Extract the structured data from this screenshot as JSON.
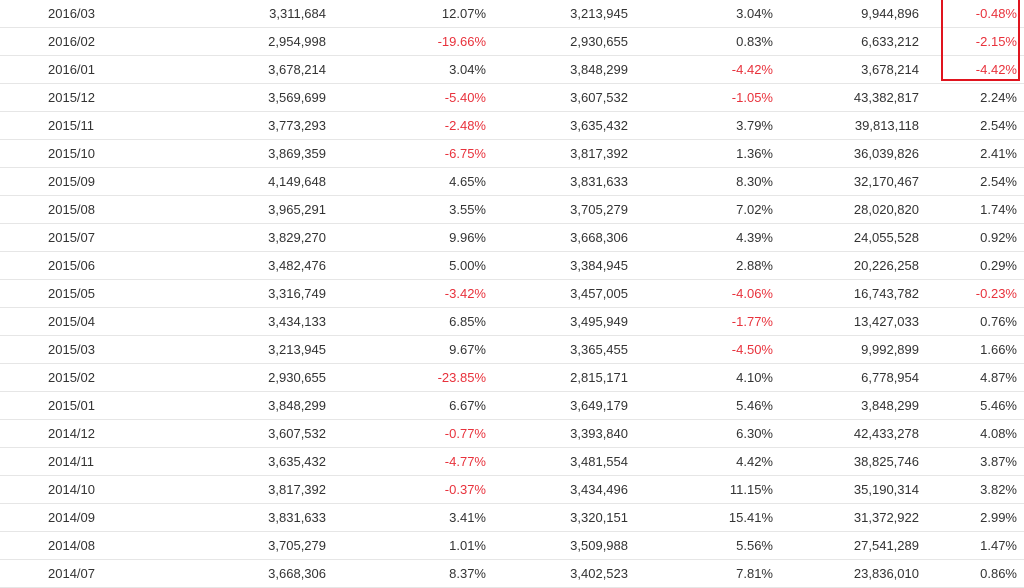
{
  "table": {
    "rows": [
      [
        "2016/03",
        "3,311,684",
        "12.07%",
        "3,213,945",
        "3.04%",
        "9,944,896",
        "-0.48%"
      ],
      [
        "2016/02",
        "2,954,998",
        "-19.66%",
        "2,930,655",
        "0.83%",
        "6,633,212",
        "-2.15%"
      ],
      [
        "2016/01",
        "3,678,214",
        "3.04%",
        "3,848,299",
        "-4.42%",
        "3,678,214",
        "-4.42%"
      ],
      [
        "2015/12",
        "3,569,699",
        "-5.40%",
        "3,607,532",
        "-1.05%",
        "43,382,817",
        "2.24%"
      ],
      [
        "2015/11",
        "3,773,293",
        "-2.48%",
        "3,635,432",
        "3.79%",
        "39,813,118",
        "2.54%"
      ],
      [
        "2015/10",
        "3,869,359",
        "-6.75%",
        "3,817,392",
        "1.36%",
        "36,039,826",
        "2.41%"
      ],
      [
        "2015/09",
        "4,149,648",
        "4.65%",
        "3,831,633",
        "8.30%",
        "32,170,467",
        "2.54%"
      ],
      [
        "2015/08",
        "3,965,291",
        "3.55%",
        "3,705,279",
        "7.02%",
        "28,020,820",
        "1.74%"
      ],
      [
        "2015/07",
        "3,829,270",
        "9.96%",
        "3,668,306",
        "4.39%",
        "24,055,528",
        "0.92%"
      ],
      [
        "2015/06",
        "3,482,476",
        "5.00%",
        "3,384,945",
        "2.88%",
        "20,226,258",
        "0.29%"
      ],
      [
        "2015/05",
        "3,316,749",
        "-3.42%",
        "3,457,005",
        "-4.06%",
        "16,743,782",
        "-0.23%"
      ],
      [
        "2015/04",
        "3,434,133",
        "6.85%",
        "3,495,949",
        "-1.77%",
        "13,427,033",
        "0.76%"
      ],
      [
        "2015/03",
        "3,213,945",
        "9.67%",
        "3,365,455",
        "-4.50%",
        "9,992,899",
        "1.66%"
      ],
      [
        "2015/02",
        "2,930,655",
        "-23.85%",
        "2,815,171",
        "4.10%",
        "6,778,954",
        "4.87%"
      ],
      [
        "2015/01",
        "3,848,299",
        "6.67%",
        "3,649,179",
        "5.46%",
        "3,848,299",
        "5.46%"
      ],
      [
        "2014/12",
        "3,607,532",
        "-0.77%",
        "3,393,840",
        "6.30%",
        "42,433,278",
        "4.08%"
      ],
      [
        "2014/11",
        "3,635,432",
        "-4.77%",
        "3,481,554",
        "4.42%",
        "38,825,746",
        "3.87%"
      ],
      [
        "2014/10",
        "3,817,392",
        "-0.37%",
        "3,434,496",
        "11.15%",
        "35,190,314",
        "3.82%"
      ],
      [
        "2014/09",
        "3,831,633",
        "3.41%",
        "3,320,151",
        "15.41%",
        "31,372,922",
        "2.99%"
      ],
      [
        "2014/08",
        "3,705,279",
        "1.01%",
        "3,509,988",
        "5.56%",
        "27,541,289",
        "1.47%"
      ],
      [
        "2014/07",
        "3,668,306",
        "8.37%",
        "3,402,523",
        "7.81%",
        "23,836,010",
        "0.86%"
      ]
    ]
  },
  "colors": {
    "negative": "#e8323c",
    "text": "#333333",
    "highlight_border": "#e0141e",
    "row_border": "#e6e6e6"
  }
}
